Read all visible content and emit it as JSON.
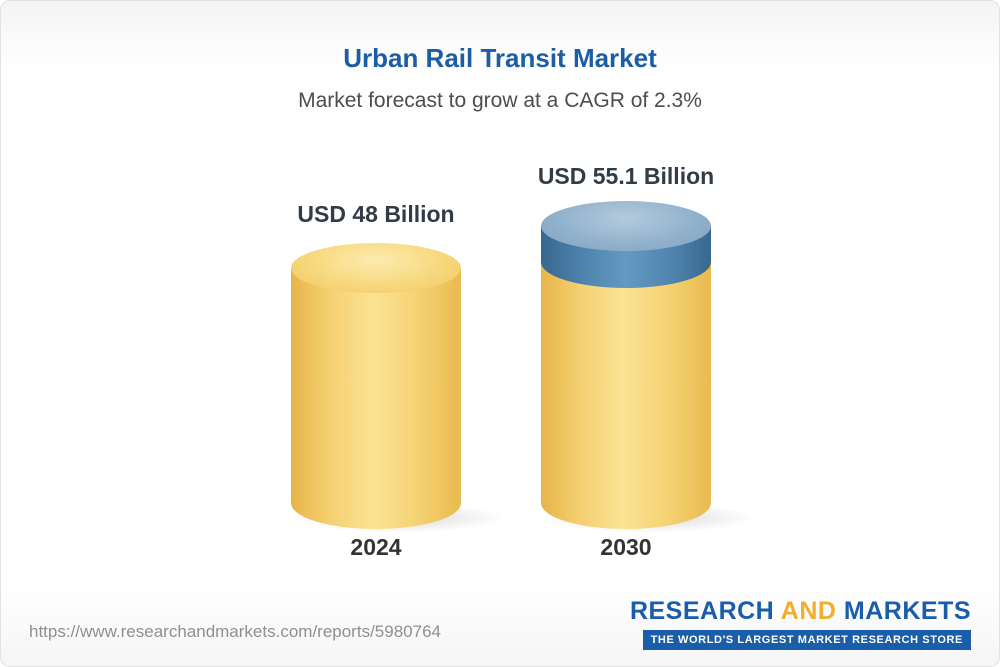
{
  "chart_data": {
    "type": "bar",
    "title": "Urban Rail Transit Market",
    "subtitle": "Market forecast to grow at a CAGR of 2.3%",
    "categories": [
      "2024",
      "2030"
    ],
    "values": [
      48,
      55.1
    ],
    "value_labels": [
      "USD 48 Billion",
      "USD 55.1 Billion"
    ],
    "unit": "USD Billion",
    "cagr_percent": 2.3,
    "ylim": [
      0,
      60
    ],
    "grid": false,
    "legend": "none",
    "colors": {
      "title_blue": "#1b5ea6",
      "bar_yellow": "#f5cb63",
      "bar_growth_blue": "#4a7ba6",
      "value_label_dark": "#323c46"
    }
  },
  "footer": {
    "url": "https://www.researchandmarkets.com/reports/5980764",
    "logo": {
      "word1": "RESEARCH",
      "word2": "AND",
      "word3": "MARKETS",
      "tagline": "THE WORLD'S LARGEST MARKET RESEARCH STORE"
    }
  }
}
